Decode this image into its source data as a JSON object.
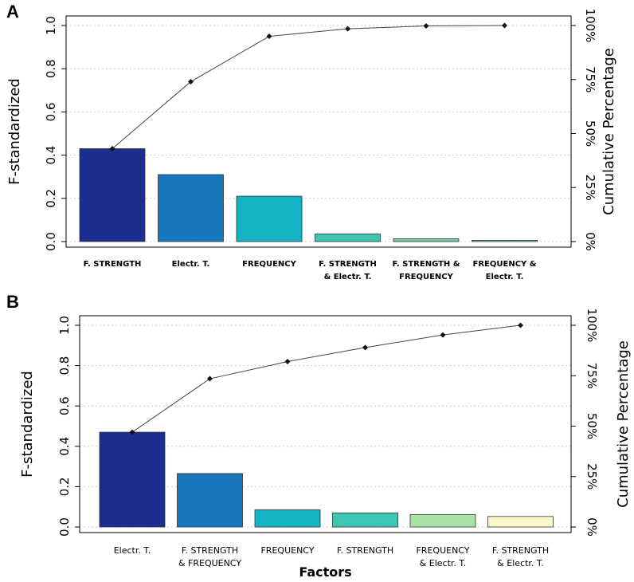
{
  "chart_data": [
    {
      "panel": "A",
      "type": "bar",
      "title": "",
      "xlabel": "",
      "ylabel": "F-standardized",
      "y2label": "Cumulative Percentage",
      "ylim": [
        0,
        1.0
      ],
      "yticks": [
        "0.0",
        "0.2",
        "0.4",
        "0.6",
        "0.8",
        "1.0"
      ],
      "y2ticks": [
        "0%",
        "25%",
        "50%",
        "75%",
        "100%"
      ],
      "categories": [
        [
          "F. STRENGTH"
        ],
        [
          "Electr. T."
        ],
        [
          "FREQUENCY"
        ],
        [
          "F. STRENGTH",
          "& Electr. T."
        ],
        [
          "F. STRENGTH &",
          "FREQUENCY"
        ],
        [
          "FREQUENCY &",
          "Electr. T."
        ]
      ],
      "values": [
        0.43,
        0.31,
        0.21,
        0.035,
        0.013,
        0.006
      ],
      "colors": [
        "#1b2e8f",
        "#1878bd",
        "#15b4c4",
        "#3fc6b2",
        "#74d1a5",
        "#8dd7a8"
      ],
      "cumulative": [
        0.43,
        0.74,
        0.95,
        0.985,
        0.998,
        1.0
      ],
      "grid": true
    },
    {
      "panel": "B",
      "type": "bar",
      "title": "",
      "xlabel": "Factors",
      "ylabel": "F-standardized",
      "y2label": "Cumulative Percentage",
      "ylim": [
        0,
        1.0
      ],
      "yticks": [
        "0.0",
        "0.2",
        "0.4",
        "0.6",
        "0.8",
        "1.0"
      ],
      "y2ticks": [
        "0%",
        "25%",
        "50%",
        "75%",
        "100%"
      ],
      "categories": [
        [
          "Electr. T."
        ],
        [
          "F. STRENGTH",
          "& FREQUENCY"
        ],
        [
          "FREQUENCY"
        ],
        [
          "F. STRENGTH"
        ],
        [
          "FREQUENCY",
          "& Electr. T."
        ],
        [
          "F. STRENGTH",
          "&  Electr. T."
        ]
      ],
      "values": [
        0.47,
        0.265,
        0.085,
        0.07,
        0.062,
        0.052
      ],
      "colors": [
        "#1b2e8f",
        "#1878bd",
        "#15b4c4",
        "#3fc6b2",
        "#a8e2a6",
        "#fbf7c8"
      ],
      "cumulative": [
        0.47,
        0.735,
        0.82,
        0.89,
        0.952,
        1.0
      ],
      "grid": true
    }
  ]
}
